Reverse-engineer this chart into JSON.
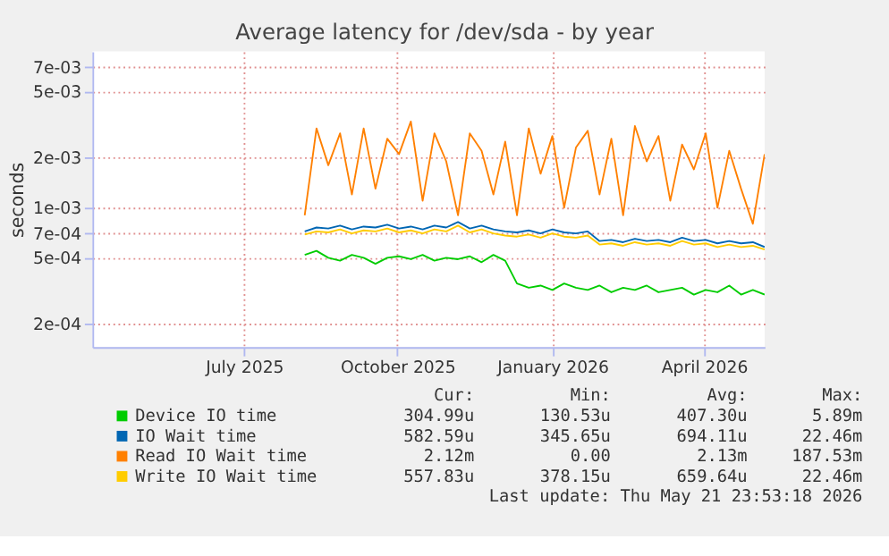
{
  "chart_data": {
    "type": "line",
    "title": "Average latency for /dev/sda - by year",
    "ylabel": "seconds",
    "x": [
      "2025-08-21",
      "2025-08-28",
      "2025-09-04",
      "2025-09-11",
      "2025-09-18",
      "2025-09-25",
      "2025-10-02",
      "2025-10-09",
      "2025-10-16",
      "2025-10-23",
      "2025-10-30",
      "2025-11-06",
      "2025-11-13",
      "2025-11-20",
      "2025-11-27",
      "2025-12-04",
      "2025-12-11",
      "2025-12-18",
      "2025-12-25",
      "2026-01-01",
      "2026-01-08",
      "2026-01-15",
      "2026-01-22",
      "2026-01-29",
      "2026-02-05",
      "2026-02-12",
      "2026-02-19",
      "2026-02-26",
      "2026-03-05",
      "2026-03-12",
      "2026-03-19",
      "2026-03-26",
      "2026-04-02",
      "2026-04-09",
      "2026-04-16",
      "2026-04-23",
      "2026-04-30",
      "2026-05-07",
      "2026-05-14",
      "2026-05-21"
    ],
    "series": [
      {
        "name": "Device IO time",
        "color": "#00cc00",
        "values": [
          0.00052,
          0.00055,
          0.0005,
          0.00048,
          0.00052,
          0.0005,
          0.00046,
          0.0005,
          0.00051,
          0.00049,
          0.00052,
          0.00048,
          0.0005,
          0.00049,
          0.00051,
          0.00047,
          0.00052,
          0.00048,
          0.00035,
          0.00033,
          0.00034,
          0.00032,
          0.00035,
          0.00033,
          0.00032,
          0.00034,
          0.00031,
          0.00033,
          0.00032,
          0.00034,
          0.00031,
          0.00032,
          0.00033,
          0.0003,
          0.00032,
          0.00031,
          0.00034,
          0.0003,
          0.00032,
          0.0003
        ]
      },
      {
        "name": "IO Wait time",
        "color": "#0066b3",
        "values": [
          0.00072,
          0.00076,
          0.00075,
          0.00078,
          0.00074,
          0.00077,
          0.00076,
          0.00079,
          0.00075,
          0.00077,
          0.00074,
          0.00078,
          0.00076,
          0.00082,
          0.00075,
          0.00078,
          0.00074,
          0.00072,
          0.00071,
          0.00073,
          0.0007,
          0.00074,
          0.00071,
          0.0007,
          0.00072,
          0.00063,
          0.00064,
          0.00062,
          0.00065,
          0.00063,
          0.00064,
          0.00062,
          0.00066,
          0.00063,
          0.00064,
          0.00061,
          0.00063,
          0.00061,
          0.00062,
          0.00058
        ]
      },
      {
        "name": "Read IO Wait time",
        "color": "#ff8000",
        "values": [
          0.0009,
          0.003,
          0.0018,
          0.0028,
          0.0012,
          0.003,
          0.0013,
          0.0026,
          0.0021,
          0.0033,
          0.0011,
          0.0028,
          0.0019,
          0.0009,
          0.0028,
          0.0022,
          0.0012,
          0.0025,
          0.0009,
          0.003,
          0.0016,
          0.0027,
          0.001,
          0.0023,
          0.0029,
          0.0012,
          0.0026,
          0.0009,
          0.0031,
          0.0019,
          0.0027,
          0.0011,
          0.0024,
          0.0017,
          0.0028,
          0.001,
          0.0022,
          0.0013,
          0.0008,
          0.0021
        ]
      },
      {
        "name": "Write IO Wait time",
        "color": "#ffcc00",
        "values": [
          0.00069,
          0.00072,
          0.00071,
          0.00074,
          0.0007,
          0.00073,
          0.00072,
          0.00075,
          0.00071,
          0.00073,
          0.0007,
          0.00074,
          0.00072,
          0.00078,
          0.00071,
          0.00074,
          0.0007,
          0.00068,
          0.00067,
          0.00069,
          0.00066,
          0.0007,
          0.00067,
          0.00066,
          0.00068,
          0.0006,
          0.00061,
          0.00059,
          0.00062,
          0.0006,
          0.00061,
          0.00059,
          0.00063,
          0.0006,
          0.00061,
          0.00058,
          0.0006,
          0.00058,
          0.00059,
          0.00056
        ]
      }
    ],
    "xlim": [
      "2025-04-17",
      "2026-05-21"
    ],
    "xticks": [
      {
        "value": "2025-07-16",
        "label": "July 2025"
      },
      {
        "value": "2025-10-15",
        "label": "October 2025"
      },
      {
        "value": "2026-01-15",
        "label": "January 2026"
      },
      {
        "value": "2026-04-15",
        "label": "April 2026"
      }
    ],
    "ylim": [
      0.000145,
      0.0087
    ],
    "yticks": [
      {
        "value": 0.0002,
        "label": "2e-04"
      },
      {
        "value": 0.0005,
        "label": "5e-04"
      },
      {
        "value": 0.0007,
        "label": "7e-04"
      },
      {
        "value": 0.001,
        "label": "1e-03"
      },
      {
        "value": 0.002,
        "label": "2e-03"
      },
      {
        "value": 0.005,
        "label": "5e-03"
      },
      {
        "value": 0.007,
        "label": "7e-03"
      }
    ],
    "log": "y",
    "grid": true,
    "legend": "bottom",
    "line_style": "solid",
    "marker": "none",
    "annotations": [
      "Cur:",
      "Min:",
      "Avg:",
      "Max:",
      "304.99u",
      "130.53u",
      "407.30u",
      "5.89m",
      "582.59u",
      "345.65u",
      "694.11u",
      "22.46m",
      "2.12m",
      "0.00",
      "2.13m",
      "187.53m",
      "557.83u",
      "378.15u",
      "659.64u",
      "22.46m",
      "Last update: Thu May 21 23:53:18 2026"
    ]
  }
}
